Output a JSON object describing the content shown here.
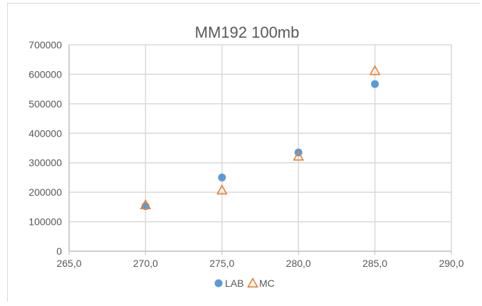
{
  "chart_data": {
    "type": "scatter",
    "title": "MM192 100mb",
    "xlabel": "",
    "ylabel": "",
    "xlim": [
      265,
      290
    ],
    "ylim": [
      0,
      700000
    ],
    "x_ticks": [
      265,
      270,
      275,
      280,
      285,
      290
    ],
    "x_tick_labels": [
      "265,0",
      "270,0",
      "275,0",
      "280,0",
      "285,0",
      "290,0"
    ],
    "y_ticks": [
      0,
      100000,
      200000,
      300000,
      400000,
      500000,
      600000,
      700000
    ],
    "y_tick_labels": [
      "0",
      "100000",
      "200000",
      "300000",
      "400000",
      "500000",
      "600000",
      "700000"
    ],
    "grid": "vertical-and-horizontal",
    "legend_position": "bottom",
    "series": [
      {
        "name": "LAB",
        "marker": "circle",
        "color": "#5b9bd5",
        "x": [
          270,
          275,
          280,
          285
        ],
        "y": [
          153000,
          250000,
          335000,
          567000
        ]
      },
      {
        "name": "MC",
        "marker": "triangle-open",
        "color": "#ed7d31",
        "x": [
          270,
          275,
          280,
          285
        ],
        "y": [
          157000,
          207000,
          322000,
          612000
        ]
      }
    ]
  }
}
